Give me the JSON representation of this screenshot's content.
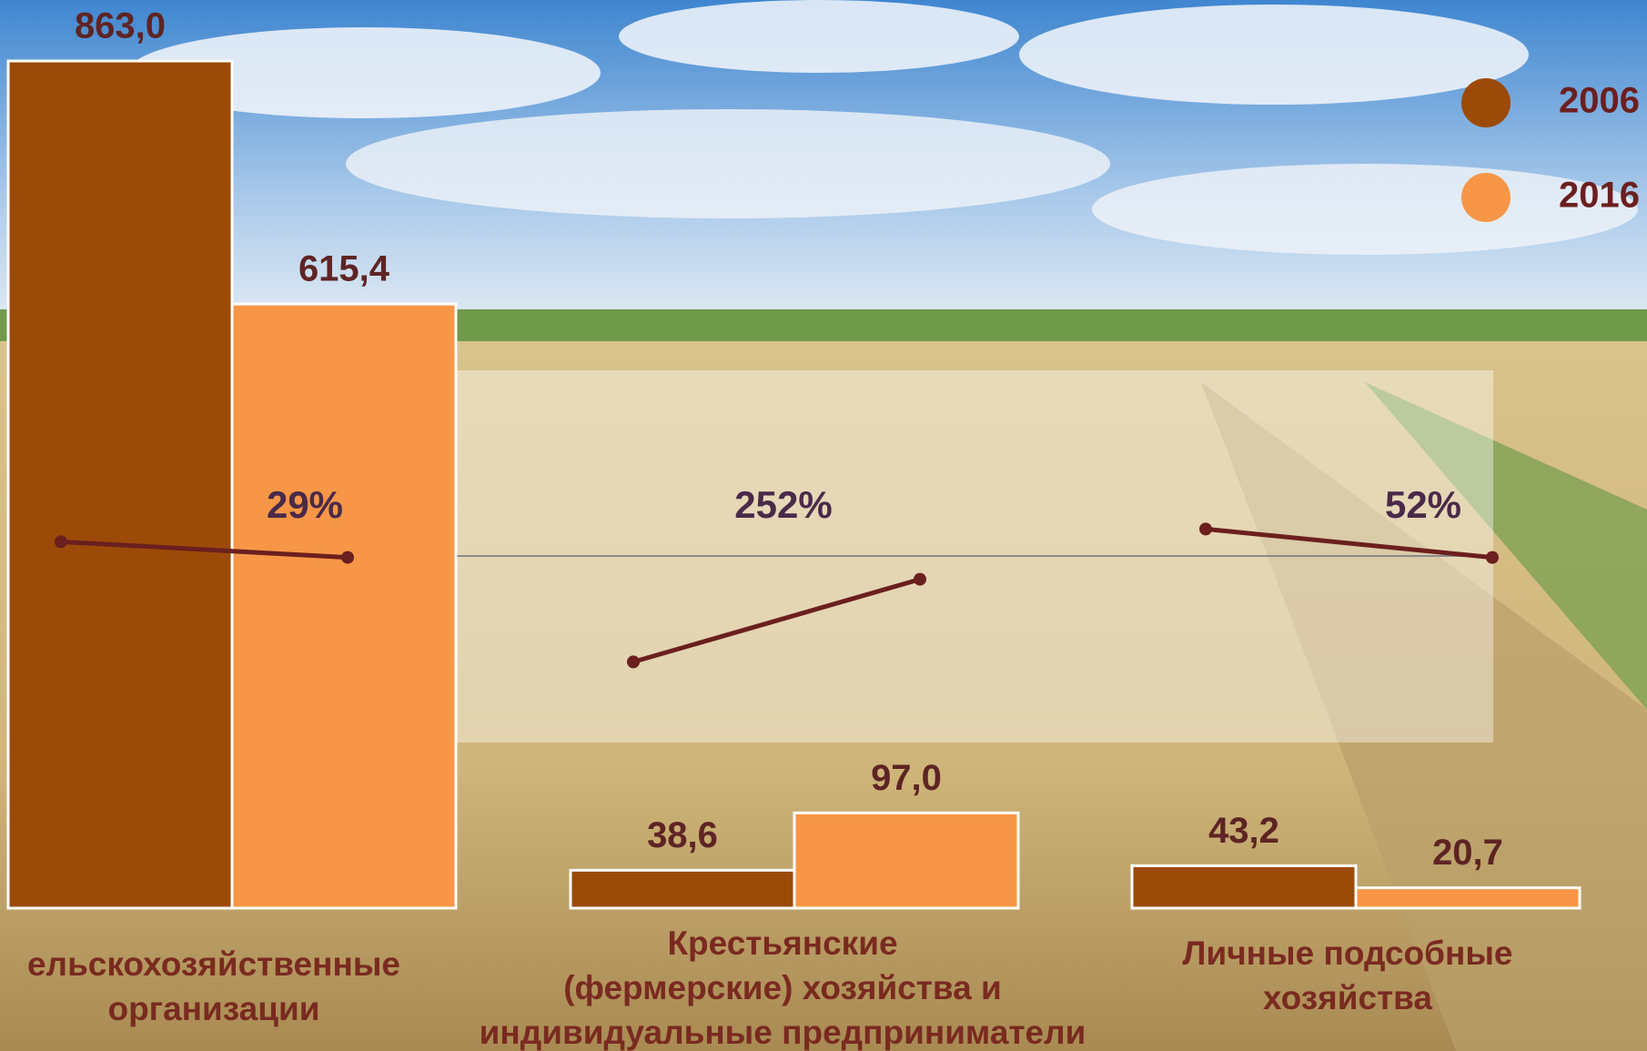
{
  "chart_data": {
    "type": "bar",
    "categories": [
      "ельскохозяйственные\nорганизации",
      "Крестьянские\n(фермерские) хозяйства и\nиндивидуальные предприниматели",
      "Личные подсобные\nхозяйства"
    ],
    "series": [
      {
        "name": "2006",
        "color": "#9c4a08",
        "values": [
          863.0,
          38.6,
          43.2
        ],
        "value_labels": [
          "863,0",
          "38,6",
          "43,2"
        ]
      },
      {
        "name": "2016",
        "color": "#f79646",
        "values": [
          615.4,
          97.0,
          20.7
        ],
        "value_labels": [
          "615,4",
          "97,0",
          "20,7"
        ]
      }
    ],
    "annotations": [
      {
        "value": 29,
        "label": "29%"
      },
      {
        "value": 252,
        "label": "252%"
      },
      {
        "value": 52,
        "label": "52%"
      }
    ],
    "legend": "top-right"
  }
}
